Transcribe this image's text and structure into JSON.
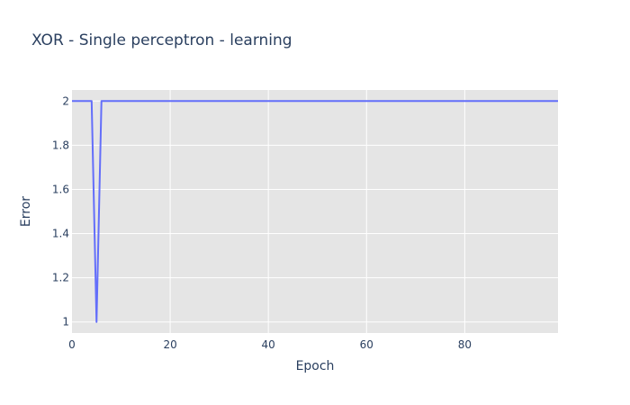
{
  "chart_data": {
    "type": "line",
    "title": "XOR - Single perceptron - learning",
    "xlabel": "Epoch",
    "ylabel": "Error",
    "xlim": [
      0,
      99
    ],
    "ylim": [
      0.95,
      2.05
    ],
    "x_ticks": [
      0,
      20,
      40,
      60,
      80
    ],
    "y_ticks": [
      1,
      1.2,
      1.4,
      1.6,
      1.8,
      2
    ],
    "grid": true,
    "legend": "none",
    "series": [
      {
        "color": "#636efa",
        "x": [
          0,
          4,
          5,
          6,
          99
        ],
        "y": [
          2,
          2,
          1,
          2,
          2
        ]
      }
    ]
  },
  "colors": {
    "plot_background": "#e5e5e5",
    "grid": "#ffffff",
    "text": "#2a3f5f"
  }
}
